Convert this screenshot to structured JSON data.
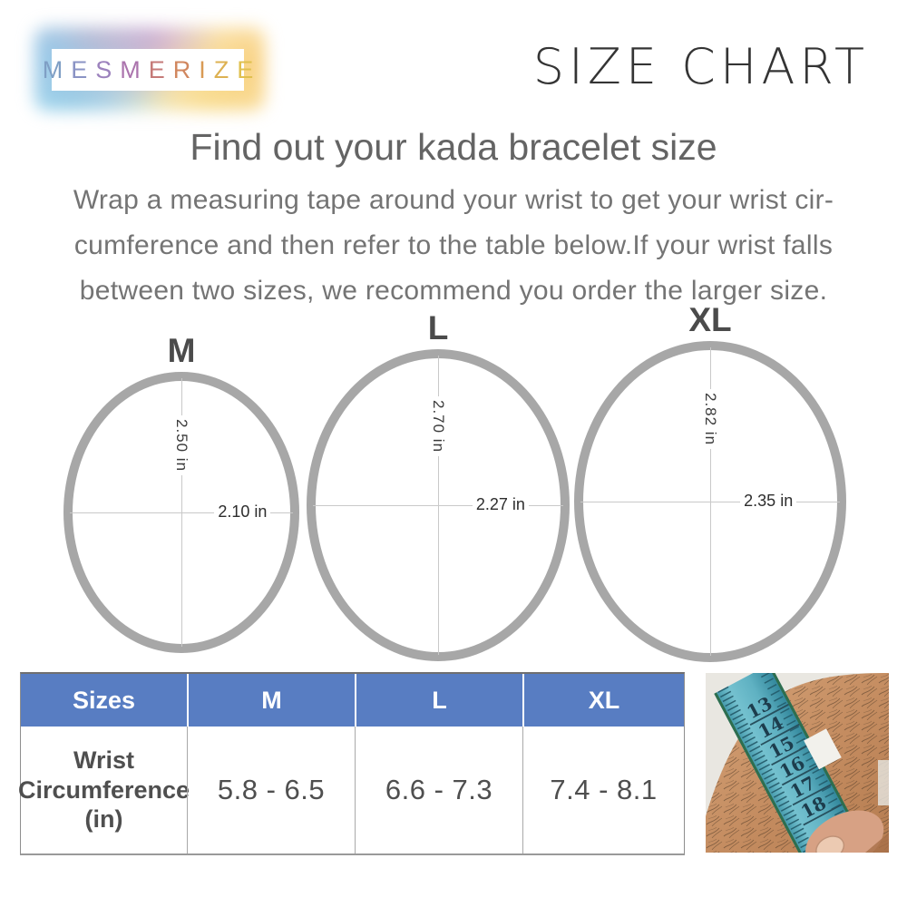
{
  "brand": {
    "name": "MESMERIZE",
    "letters": [
      {
        "ch": "M",
        "color": "#7f9fc5"
      },
      {
        "ch": "E",
        "color": "#8a93c4"
      },
      {
        "ch": "S",
        "color": "#9c82bd"
      },
      {
        "ch": "M",
        "color": "#ab74ad"
      },
      {
        "ch": "E",
        "color": "#c57a78"
      },
      {
        "ch": "R",
        "color": "#d1875f"
      },
      {
        "ch": "I",
        "color": "#d99a55"
      },
      {
        "ch": "Z",
        "color": "#ddb152"
      },
      {
        "ch": "E",
        "color": "#e0c04f"
      }
    ]
  },
  "title": "SIZE CHART",
  "heading": "Find out your kada bracelet size",
  "intro": "Wrap a measuring tape around your wrist to get your wrist cir-\ncumference and then refer to the table below.If your wrist falls\nbetween two sizes, we recommend you order the larger size.",
  "circles": [
    {
      "label": "M",
      "height_in": "2.50 in",
      "width_in": "2.10 in"
    },
    {
      "label": "L",
      "height_in": "2.70 in",
      "width_in": "2.27 in"
    },
    {
      "label": "XL",
      "height_in": "2.82 in",
      "width_in": "2.35 in"
    }
  ],
  "table": {
    "header_bg": "#587dc2",
    "header": [
      "Sizes",
      "M",
      "L",
      "XL"
    ],
    "row_label": "Wrist\nCircumference\n(in)",
    "values": [
      "5.8 - 6.5",
      "6.6 - 7.3",
      "7.4 - 8.1"
    ]
  },
  "photo": {
    "tape_numbers": [
      "13",
      "14",
      "15",
      "16",
      "17",
      "18"
    ]
  }
}
